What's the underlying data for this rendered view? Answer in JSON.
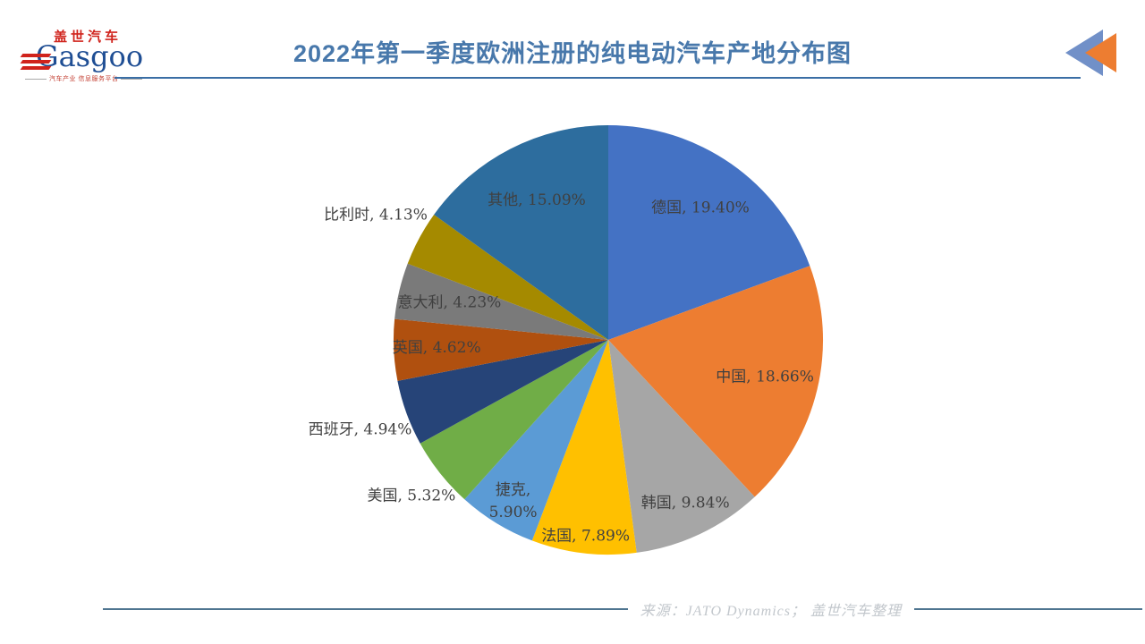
{
  "header": {
    "logo": {
      "chinese": "盖世汽车",
      "english": "Gasgoo",
      "tagline": "汽车产业 信息服务平台"
    },
    "title": "2022年第一季度欧洲注册的纯电动汽车产地分布图",
    "accent_color": "#4878AB"
  },
  "corner_icon": {
    "blue": "#7190C8",
    "orange": "#ED7D31"
  },
  "chart_data": {
    "type": "pie",
    "title": "2022年第一季度欧洲注册的纯电动汽车产地分布图",
    "start_angle_deg": 0,
    "direction": "clockwise",
    "legend": "none",
    "label_format": "{name}, {value}%",
    "label_color": "#404040",
    "slices": [
      {
        "name": "德国",
        "value": 19.4,
        "color": "#4472C4",
        "lf": 0.75
      },
      {
        "name": "中国",
        "value": 18.66,
        "color": "#ED7D31",
        "lf": 0.75
      },
      {
        "name": "韩国",
        "value": 9.84,
        "color": "#A6A6A6",
        "lf": 0.84
      },
      {
        "name": "法国",
        "value": 7.89,
        "color": "#FFC000",
        "lf": 0.92
      },
      {
        "name": "捷克",
        "value": 5.9,
        "color": "#5B9BD5",
        "lf": 0.85,
        "two_line": true
      },
      {
        "name": "美国",
        "value": 5.32,
        "color": "#70AD47",
        "lf": 1.17
      },
      {
        "name": "西班牙",
        "value": 4.94,
        "color": "#264478",
        "lf": 1.23
      },
      {
        "name": "英国",
        "value": 4.62,
        "color": "#B0500F",
        "lf": 0.8
      },
      {
        "name": "意大利",
        "value": 4.23,
        "color": "#7A7A7A",
        "lf": 0.76
      },
      {
        "name": "比利时",
        "value": 4.13,
        "color": "#A58A00",
        "lf": 1.23
      },
      {
        "name": "其他",
        "value": 15.09,
        "color": "#2D6D9E",
        "lf": 0.73
      }
    ]
  },
  "footer": {
    "source_text": "来源：JATO Dynamics； 盖世汽车整理",
    "line_color": "#4F7590"
  }
}
